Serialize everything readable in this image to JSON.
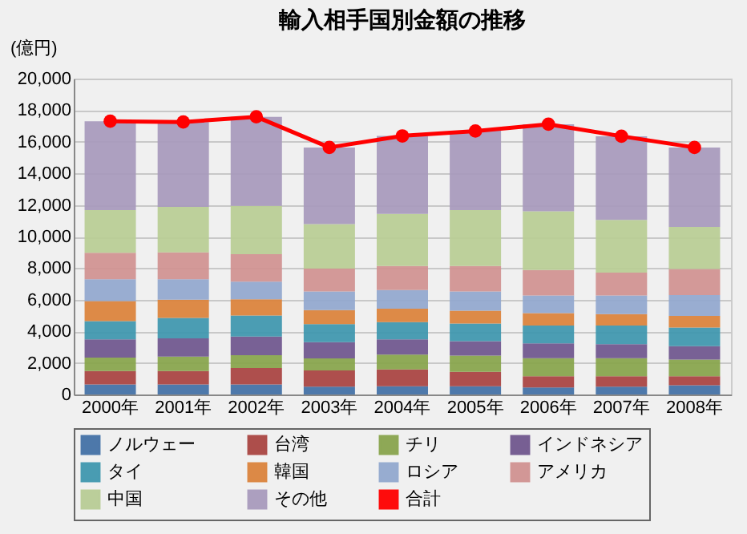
{
  "chart_data": {
    "type": "bar",
    "stacked": true,
    "title": "輸入相手国別金額の推移",
    "ylabel": "(億円)",
    "categories": [
      "2000年",
      "2001年",
      "2002年",
      "2003年",
      "2004年",
      "2005年",
      "2006年",
      "2007年",
      "2008年"
    ],
    "series": [
      {
        "name": "ノルウェー",
        "color": "#4572a7",
        "values": [
          640,
          640,
          640,
          490,
          520,
          520,
          450,
          490,
          580
        ]
      },
      {
        "name": "台湾",
        "color": "#aa4643",
        "values": [
          850,
          850,
          1030,
          1030,
          1060,
          910,
          700,
          660,
          570
        ]
      },
      {
        "name": "チリ",
        "color": "#89a54e",
        "values": [
          850,
          910,
          820,
          760,
          940,
          1030,
          1150,
          1150,
          1060
        ]
      },
      {
        "name": "インドネシア",
        "color": "#71588f",
        "values": [
          1150,
          1150,
          1180,
          1030,
          970,
          910,
          940,
          880,
          850
        ]
      },
      {
        "name": "タイ",
        "color": "#4198af",
        "values": [
          1150,
          1300,
          1330,
          1150,
          1090,
          1120,
          1120,
          1180,
          1180
        ]
      },
      {
        "name": "韓国",
        "color": "#db843d",
        "values": [
          1270,
          1150,
          1030,
          880,
          850,
          820,
          790,
          730,
          730
        ]
      },
      {
        "name": "ロシア",
        "color": "#93a9cf",
        "values": [
          1390,
          1300,
          1120,
          1180,
          1180,
          1210,
          1120,
          1180,
          1330
        ]
      },
      {
        "name": "アメリカ",
        "color": "#d19392",
        "values": [
          1670,
          1700,
          1730,
          1450,
          1520,
          1610,
          1610,
          1450,
          1640
        ]
      },
      {
        "name": "中国",
        "color": "#b9cd96",
        "values": [
          2700,
          2880,
          3060,
          2820,
          3300,
          3540,
          3720,
          3330,
          2670
        ]
      },
      {
        "name": "その他",
        "color": "#a99bbd",
        "values": [
          5630,
          5370,
          5640,
          4850,
          4940,
          5030,
          5510,
          5300,
          5030
        ]
      },
      {
        "name": "合計",
        "color": "#ff0000",
        "type": "line",
        "marker": "circle",
        "values": [
          17300,
          17250,
          17580,
          15640,
          16370,
          16680,
          17110,
          16350,
          15640
        ]
      }
    ],
    "ylim": [
      0,
      20000
    ],
    "yticks": [
      {
        "value": 0,
        "label": "0"
      },
      {
        "value": 2000,
        "label": "2,000"
      },
      {
        "value": 4000,
        "label": "4,000"
      },
      {
        "value": 6000,
        "label": "6,000"
      },
      {
        "value": 8000,
        "label": "8,000"
      },
      {
        "value": 10000,
        "label": "10,000"
      },
      {
        "value": 12000,
        "label": "12,000"
      },
      {
        "value": 14000,
        "label": "14,000"
      },
      {
        "value": 16000,
        "label": "16,000"
      },
      {
        "value": 18000,
        "label": "18,000"
      },
      {
        "value": 20000,
        "label": "20,000"
      }
    ],
    "grid": "y",
    "legend": "bottom"
  }
}
